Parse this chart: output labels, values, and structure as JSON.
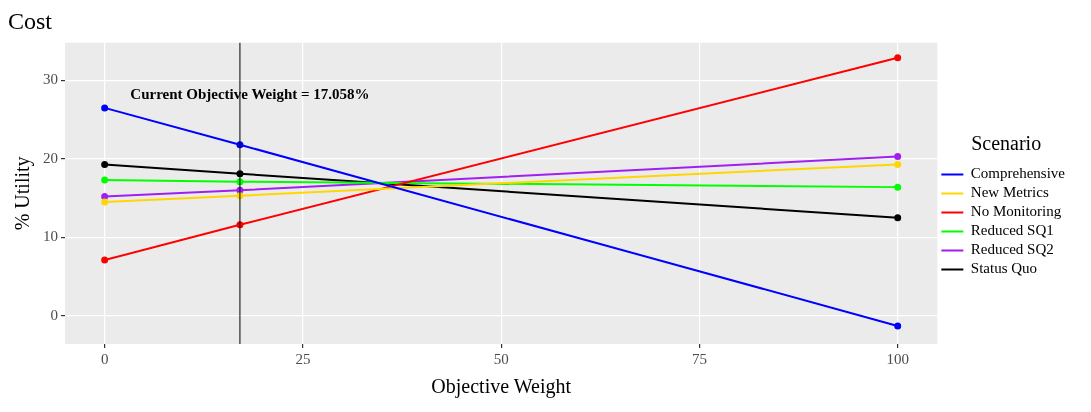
{
  "chart_data": {
    "type": "line",
    "title": "Cost",
    "xlabel": "Objective Weight",
    "ylabel": "% Utility",
    "legend_title": "Scenario",
    "x": [
      0,
      17.058,
      100
    ],
    "series": [
      {
        "name": "Comprehensive",
        "color": "#0000ff",
        "values": [
          26.5,
          21.8,
          -1.3
        ]
      },
      {
        "name": "New Metrics",
        "color": "#ffd700",
        "values": [
          14.5,
          15.3,
          19.3
        ]
      },
      {
        "name": "No Monitoring",
        "color": "#ff0000",
        "values": [
          7.1,
          11.6,
          32.9
        ]
      },
      {
        "name": "Reduced SQ1",
        "color": "#00ff00",
        "values": [
          17.3,
          17.1,
          16.4
        ]
      },
      {
        "name": "Reduced SQ2",
        "color": "#a020f0",
        "values": [
          15.2,
          16.0,
          20.3
        ]
      },
      {
        "name": "Status Quo",
        "color": "#000000",
        "values": [
          19.3,
          18.1,
          12.5
        ]
      }
    ],
    "xlim": [
      -5,
      105
    ],
    "xticks": [
      0,
      25,
      50,
      75,
      100
    ],
    "ylim": [
      -3.6,
      34.8
    ],
    "yticks": [
      0,
      10,
      20,
      30
    ],
    "ref_lines": [
      {
        "axis": "x",
        "value": 17.058,
        "label": "Current Objective Weight = 17.058%",
        "color": "#000000"
      }
    ],
    "grid": true,
    "legend": "right",
    "marker": "circle",
    "line_style": "solid"
  }
}
